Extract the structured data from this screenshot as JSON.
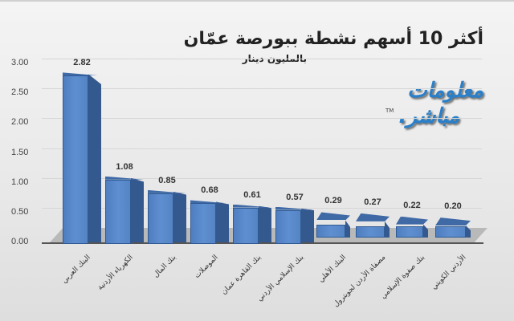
{
  "chart_data": {
    "type": "bar",
    "title": "أكثر 10 أسهم نشطة ببورصة عمّان",
    "subtitle": "بالمليون دينار",
    "xlabel": "",
    "ylabel": "",
    "ylim": [
      0,
      3
    ],
    "yticks": [
      "0.00",
      "0.50",
      "1.00",
      "1.50",
      "2.00",
      "2.50",
      "3.00"
    ],
    "grid": true,
    "legend": "none",
    "style": "3d-column",
    "categories": [
      "البنك العربي",
      "الكهرباء الأردنية",
      "بنك المال",
      "الموصلات",
      "بنك القاهرة عمان",
      "بنك الإسلامي الأردني",
      "البنك الأهلي",
      "مصفاة الأردن لجوبترول",
      "بنك صفوة الإسلامي",
      "الأردني الكويتي"
    ],
    "values": [
      2.82,
      1.08,
      0.85,
      0.68,
      0.61,
      0.57,
      0.29,
      0.27,
      0.22,
      0.2
    ],
    "value_labels": [
      "2.82",
      "1.08",
      "0.85",
      "0.68",
      "0.61",
      "0.57",
      "0.29",
      "0.27",
      "0.22",
      "0.20"
    ],
    "bar_color": "#4f7ec0"
  },
  "logo": {
    "line1": "معلومات",
    "line2": "مباشر.",
    "tm": "TM"
  }
}
